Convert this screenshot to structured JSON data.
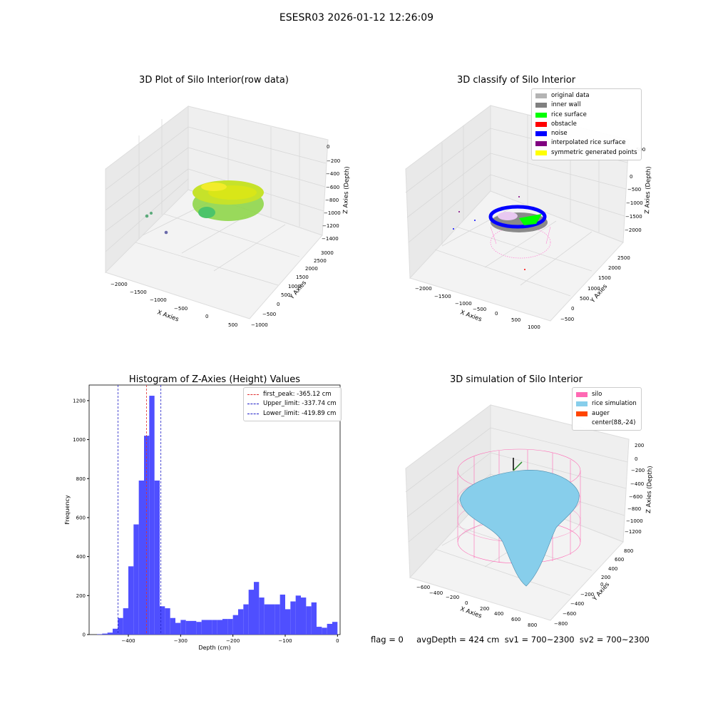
{
  "suptitle": "ESESR03 2026-01-12 12:26:09",
  "status_line": "flag = 0     avgDepth = 424 cm  sv1 = 700~2300  sv2 = 700~2300",
  "colors": {
    "histogram_bars": "#4f4fff",
    "first_peak_line": "#e03030",
    "limit_lines": "#2020c8",
    "pane": "#f2f2f2",
    "grid": "#d8d8d8"
  },
  "chart_data": [
    {
      "type": "scatter",
      "projection": "3d",
      "title": "3D Plot of Silo Interior(row data)",
      "xlabel": "X Axies",
      "ylabel": "Y Axies",
      "zlabel": "Z Axies (Depth)",
      "x_ticks": [
        "−2000",
        "−1500",
        "−1000",
        "−500",
        "0",
        "500"
      ],
      "y_ticks": [
        "−1000",
        "−500",
        "0",
        "500",
        "1000",
        "1500",
        "2000",
        "2500",
        "3000"
      ],
      "z_ticks": [
        "0",
        "−200",
        "−400",
        "−600",
        "−800",
        "−1000",
        "−1200",
        "−1400"
      ],
      "colormap": "viridis-like (green to yellow by depth)",
      "grid": true
    },
    {
      "type": "scatter",
      "projection": "3d",
      "title": "3D classify of Silo Interior",
      "xlabel": "X Axies",
      "ylabel": "Y Axies",
      "zlabel": "Z Axies (Depth)",
      "x_ticks": [
        "−2000",
        "−1500",
        "−1000",
        "−500",
        "0",
        "500",
        "1000"
      ],
      "y_ticks": [
        "−500",
        "0",
        "500",
        "1000",
        "1500",
        "2000",
        "2500"
      ],
      "z_ticks": [
        "500",
        "0",
        "−500",
        "−1000",
        "−1500",
        "−2000"
      ],
      "legend": [
        {
          "label": "original data",
          "color": "#b4b4b4"
        },
        {
          "label": "inner wall",
          "color": "#808080"
        },
        {
          "label": "rice surface",
          "color": "#00ff00"
        },
        {
          "label": "obstacle",
          "color": "#ff0000"
        },
        {
          "label": "noise",
          "color": "#0000ff"
        },
        {
          "label": "interpolated rice surface",
          "color": "#800080"
        },
        {
          "label": "symmetric generated points",
          "color": "#ffff00"
        }
      ],
      "legend_placement": "upper right",
      "grid": true
    },
    {
      "type": "bar",
      "title": "Histogram of Z-Axies (Height) Values",
      "xlabel": "Depth (cm)",
      "ylabel": "Frequency",
      "bin_width": 10,
      "bins_start": [
        -460,
        -450,
        -440,
        -430,
        -420,
        -410,
        -400,
        -390,
        -380,
        -370,
        -360,
        -350,
        -340,
        -330,
        -320,
        -310,
        -300,
        -290,
        -280,
        -270,
        -260,
        -250,
        -240,
        -230,
        -220,
        -210,
        -200,
        -190,
        -180,
        -170,
        -160,
        -150,
        -140,
        -130,
        -120,
        -110,
        -100,
        -90,
        -80,
        -70,
        -60,
        -50,
        -40,
        -30,
        -20,
        -10
      ],
      "values": [
        2,
        5,
        10,
        30,
        85,
        135,
        350,
        565,
        790,
        1020,
        1225,
        790,
        145,
        135,
        85,
        60,
        75,
        70,
        70,
        65,
        75,
        75,
        75,
        75,
        80,
        80,
        100,
        130,
        155,
        230,
        270,
        190,
        155,
        155,
        155,
        205,
        130,
        170,
        200,
        190,
        145,
        165,
        40,
        35,
        55,
        65
      ],
      "xlim": [
        -475,
        5
      ],
      "ylim": [
        0,
        1280
      ],
      "x_ticks": [
        "−400",
        "−300",
        "−200",
        "−100",
        "0"
      ],
      "y_ticks": [
        "0",
        "200",
        "400",
        "600",
        "800",
        "1000",
        "1200"
      ],
      "x_tick_values": [
        -400,
        -300,
        -200,
        -100,
        0
      ],
      "y_tick_values": [
        0,
        200,
        400,
        600,
        800,
        1000,
        1200
      ],
      "vlines": [
        {
          "label": "first_peak: -365.12 cm",
          "x": -365.12,
          "color": "#e03030"
        },
        {
          "label": "Upper_limit: -337.74 cm",
          "x": -337.74,
          "color": "#2020c8"
        },
        {
          "label": "Lower_limit: -419.89 cm",
          "x": -419.89,
          "color": "#2020c8"
        }
      ],
      "legend_placement": "upper right"
    },
    {
      "type": "area",
      "projection": "3d",
      "title": "3D simulation of Silo Interior",
      "xlabel": "X Axies",
      "ylabel": "Y Axies",
      "zlabel": "Z Axies (Depth)",
      "x_ticks": [
        "−600",
        "−400",
        "−200",
        "0",
        "200",
        "400",
        "600",
        "800"
      ],
      "y_ticks": [
        "−800",
        "−600",
        "−400",
        "−200",
        "0",
        "200",
        "400",
        "600",
        "800"
      ],
      "z_ticks": [
        "200",
        "0",
        "−200",
        "−400",
        "−600",
        "−800",
        "−1000",
        "−1200"
      ],
      "legend": [
        {
          "label": "silo",
          "color": "#ff69b4"
        },
        {
          "label": "rice simulation",
          "color": "#87ceeb"
        },
        {
          "label": "auger",
          "color": "#ff4500"
        },
        {
          "label": "center(88,-24)",
          "color": ""
        }
      ],
      "legend_placement": "upper right",
      "grid": true
    }
  ]
}
